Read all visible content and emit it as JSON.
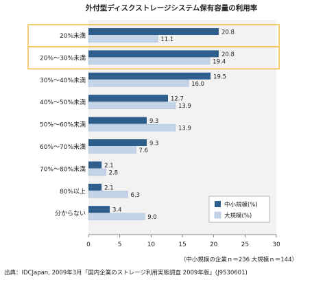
{
  "chart_data": {
    "type": "bar",
    "orientation": "horizontal",
    "title": "外付型ディスクストレージシステム保有容量の利用率",
    "categories": [
      "20%未満",
      "20%～30%未満",
      "30%～40%未満",
      "40%～50%未満",
      "50%～60%未満",
      "60%～70%未満",
      "70%～80%未満",
      "80%以上",
      "分からない"
    ],
    "highlighted_categories": [
      0,
      1
    ],
    "series": [
      {
        "name": "中小規模(%)",
        "color": "#2e5e8c",
        "values": [
          20.8,
          20.8,
          19.5,
          12.7,
          9.3,
          9.3,
          2.1,
          2.1,
          3.4
        ]
      },
      {
        "name": "大規模(%)",
        "color": "#c3d4e8",
        "values": [
          11.1,
          19.4,
          16.0,
          13.9,
          13.9,
          7.6,
          2.8,
          6.3,
          9.0
        ]
      }
    ],
    "value_labels": [
      [
        "20.8",
        "20.8",
        "19.5",
        "12.7",
        "9.3",
        "9.3",
        "2.1",
        "2.1",
        "3.4"
      ],
      [
        "11.1",
        "19.4",
        "16.0",
        "13.9",
        "13.9",
        "7.6",
        "2.8",
        "6.3",
        "9.0"
      ]
    ],
    "xlim": [
      0,
      30
    ],
    "xticks": [
      0,
      5,
      10,
      15,
      20,
      25,
      30
    ],
    "xtick_labels": [
      "0",
      "5",
      "10",
      "15",
      "20",
      "25",
      "30"
    ],
    "grid": false,
    "legend_position": "bottom-right",
    "background_color": "#f2f2f2",
    "highlight_color": "#f0c14b",
    "note": "（中小規模の企業ｎ＝236 大規模ｎ＝144）",
    "source": "出典：IDCJapan, 2009年3月「国内企業のストレージ利用実態調査 2009年版」(J9530601)"
  }
}
